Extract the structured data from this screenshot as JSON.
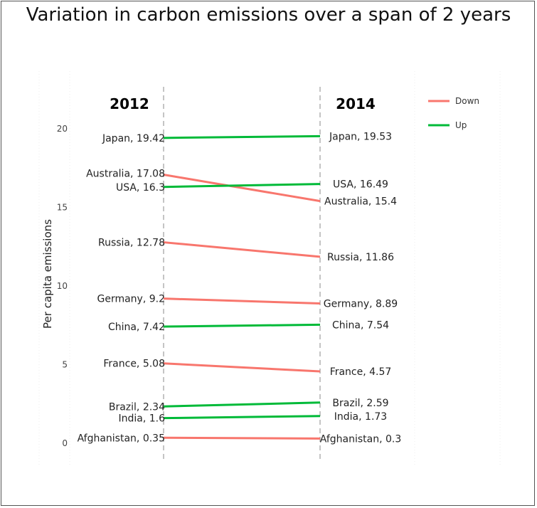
{
  "chart_data": {
    "type": "line",
    "title": "Variation in carbon emissions over a span of 2 years",
    "ylabel": "Per capita emissions",
    "xlabel": "",
    "x": [
      "2012",
      "2014"
    ],
    "ylim": [
      -1,
      22
    ],
    "yticks": [
      0,
      5,
      10,
      15,
      20
    ],
    "legend": {
      "position": "top-right",
      "entries": [
        "Down",
        "Up"
      ]
    },
    "colors": {
      "Down": "#f8766d",
      "Up": "#00ba38",
      "dash": "#9e9e9e"
    },
    "series": [
      {
        "name": "Japan",
        "values": [
          19.42,
          19.53
        ],
        "direction": "Up",
        "labels": [
          "Japan, 19.42",
          "Japan, 19.53"
        ]
      },
      {
        "name": "Australia",
        "values": [
          17.08,
          15.4
        ],
        "direction": "Down",
        "labels": [
          "Australia, 17.08",
          "Australia, 15.4"
        ]
      },
      {
        "name": "USA",
        "values": [
          16.3,
          16.49
        ],
        "direction": "Up",
        "labels": [
          "USA, 16.3",
          "USA, 16.49"
        ]
      },
      {
        "name": "Russia",
        "values": [
          12.78,
          11.86
        ],
        "direction": "Down",
        "labels": [
          "Russia, 12.78",
          "Russia, 11.86"
        ]
      },
      {
        "name": "Germany",
        "values": [
          9.2,
          8.89
        ],
        "direction": "Down",
        "labels": [
          "Germany, 9.2",
          "Germany, 8.89"
        ]
      },
      {
        "name": "China",
        "values": [
          7.42,
          7.54
        ],
        "direction": "Up",
        "labels": [
          "China, 7.42",
          "China, 7.54"
        ]
      },
      {
        "name": "France",
        "values": [
          5.08,
          4.57
        ],
        "direction": "Down",
        "labels": [
          "France, 5.08",
          "France, 4.57"
        ]
      },
      {
        "name": "Brazil",
        "values": [
          2.34,
          2.59
        ],
        "direction": "Up",
        "labels": [
          "Brazil, 2.34",
          "Brazil, 2.59"
        ]
      },
      {
        "name": "India",
        "values": [
          1.6,
          1.73
        ],
        "direction": "Up",
        "labels": [
          "India, 1.6",
          "India, 1.73"
        ]
      },
      {
        "name": "Afghanistan",
        "values": [
          0.35,
          0.3
        ],
        "direction": "Down",
        "labels": [
          "Afghanistan, 0.35",
          "Afghanistan, 0.3"
        ]
      }
    ]
  }
}
